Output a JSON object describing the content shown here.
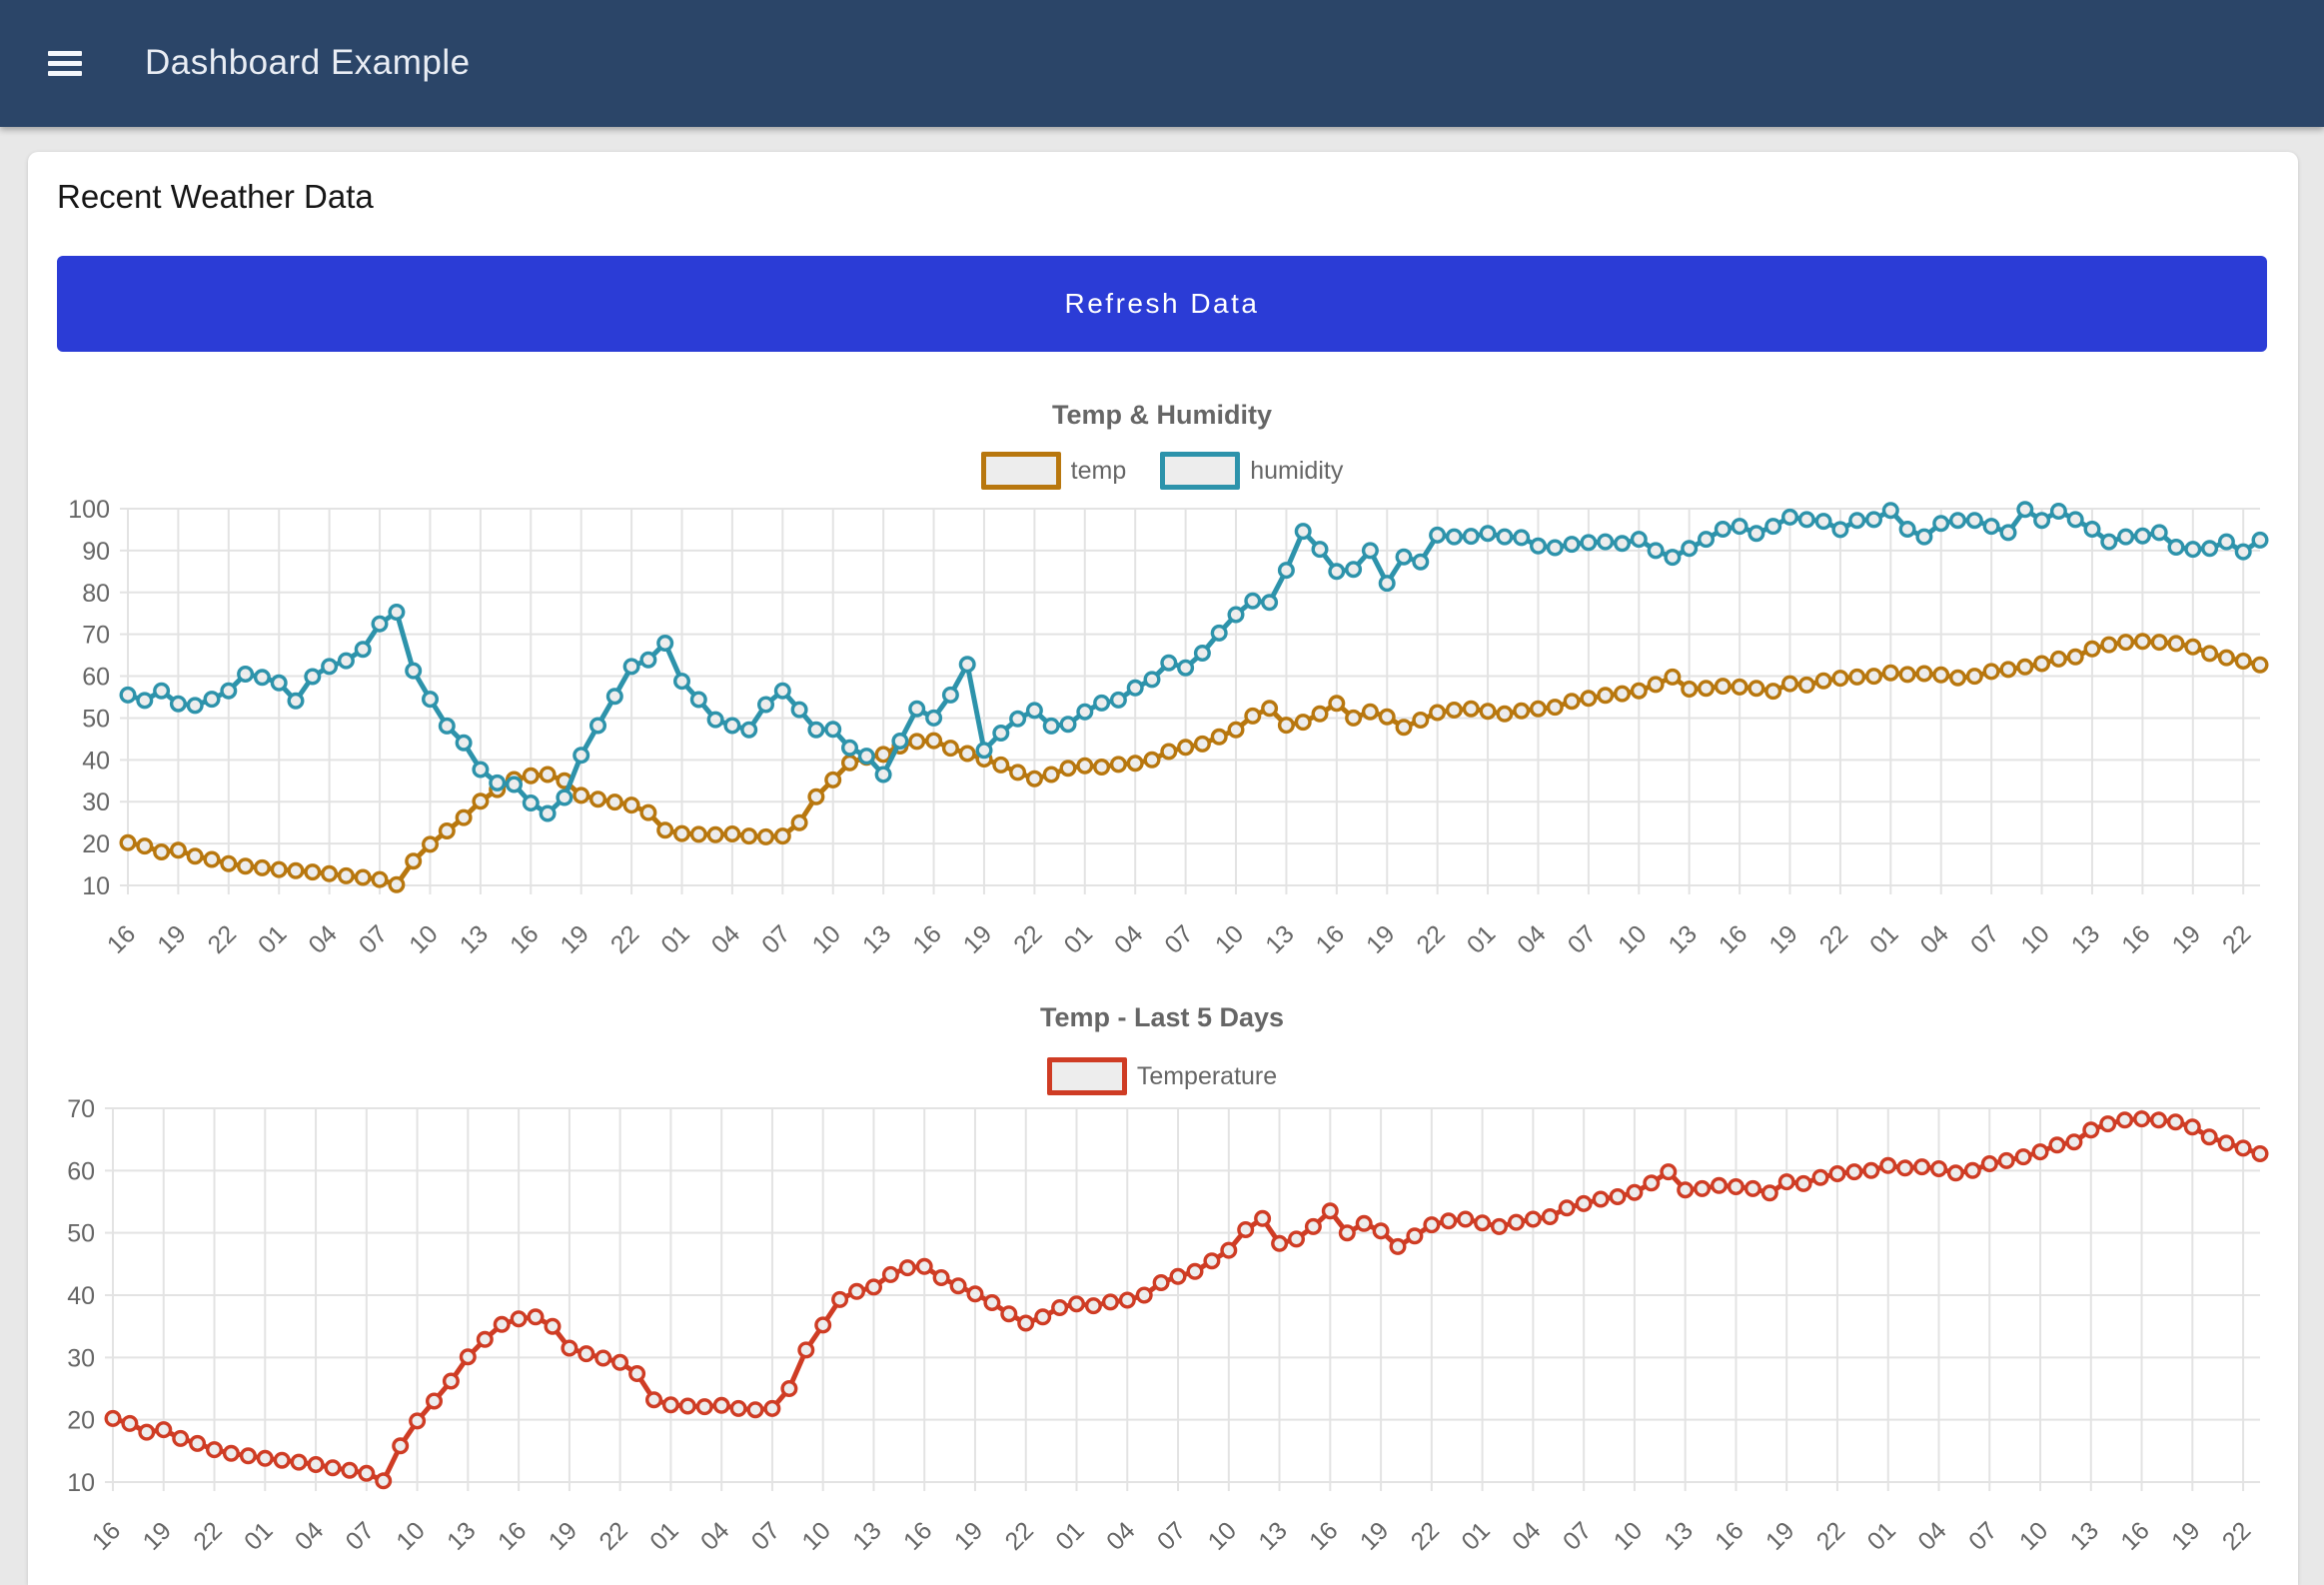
{
  "header": {
    "title": "Dashboard Example",
    "menu_icon": "hamburger-icon"
  },
  "main": {
    "heading": "Recent Weather Data",
    "refresh_button_label": "Refresh Data"
  },
  "colors": {
    "header_bg": "#2b4568",
    "page_bg": "#e8e8e8",
    "card_bg": "#ffffff",
    "button_bg": "#2b3cd6",
    "button_text": "#ffffff",
    "grid": "#e3e3e3",
    "axis_text": "#666666",
    "chart_title_text": "#666666",
    "marker_fill": "#ededed",
    "temp_series": "#b8770e",
    "humidity_series": "#2d93ab",
    "temperature_series": "#cf3c24"
  },
  "chart_data": [
    {
      "type": "line",
      "title": "Temp & Humidity",
      "legend_position": "top",
      "grid": true,
      "ylim": [
        10,
        100
      ],
      "ytick_step": 10,
      "xlabel": "",
      "ylabel": "",
      "x_labels": [
        "16",
        "19",
        "22",
        "01",
        "04",
        "07",
        "10",
        "13",
        "16",
        "19",
        "22",
        "01",
        "04",
        "07",
        "10",
        "13",
        "16",
        "19",
        "22",
        "01",
        "04",
        "07",
        "10",
        "13",
        "16",
        "19",
        "22",
        "01",
        "04",
        "07",
        "10",
        "13",
        "16",
        "19",
        "22",
        "01",
        "04",
        "07",
        "10",
        "13",
        "16",
        "19",
        "22"
      ],
      "x_unit": "hour of day, hourly points over last 5 days, labels every 3 hours",
      "series": [
        {
          "name": "temp",
          "color": "#b8770e",
          "values": [
            20.2,
            19.4,
            18.0,
            18.4,
            17.0,
            16.2,
            15.2,
            14.6,
            14.2,
            13.8,
            13.5,
            13.2,
            12.8,
            12.3,
            11.9,
            11.4,
            10.2,
            15.8,
            19.8,
            23.0,
            26.2,
            30.1,
            32.9,
            35.3,
            36.2,
            36.5,
            35.0,
            31.5,
            30.6,
            29.9,
            29.2,
            27.4,
            23.2,
            22.4,
            22.2,
            22.1,
            22.3,
            21.8,
            21.6,
            21.8,
            25.0,
            31.2,
            35.2,
            39.3,
            40.6,
            41.3,
            43.3,
            44.4,
            44.6,
            42.8,
            41.5,
            40.2,
            38.8,
            37.0,
            35.5,
            36.5,
            38.0,
            38.6,
            38.3,
            38.9,
            39.2,
            40.0,
            42.0,
            43.0,
            43.8,
            45.5,
            47.2,
            50.5,
            52.3,
            48.3,
            49.0,
            51.0,
            53.5,
            50.0,
            51.5,
            50.3,
            47.8,
            49.5,
            51.3,
            51.9,
            52.2,
            51.6,
            51.0,
            51.7,
            52.2,
            52.6,
            54.0,
            54.7,
            55.4,
            55.8,
            56.5,
            58.0,
            59.8,
            56.9,
            57.1,
            57.6,
            57.4,
            57.1,
            56.4,
            58.2,
            57.9,
            58.9,
            59.5,
            59.8,
            60.0,
            60.8,
            60.4,
            60.6,
            60.3,
            59.6,
            60.0,
            61.1,
            61.6,
            62.2,
            63.0,
            64.1,
            64.6,
            66.5,
            67.5,
            68.1,
            68.3,
            68.1,
            67.8,
            67.0,
            65.4,
            64.4,
            63.6,
            62.7
          ]
        },
        {
          "name": "humidity",
          "color": "#2d93ab",
          "values": [
            55.5,
            54.2,
            56.5,
            53.4,
            53.0,
            54.5,
            56.5,
            60.5,
            59.7,
            58.4,
            54.1,
            59.9,
            62.3,
            63.7,
            66.4,
            72.5,
            75.3,
            61.3,
            54.5,
            48.1,
            44.1,
            37.7,
            34.5,
            34.1,
            29.7,
            27.2,
            31.0,
            41.1,
            48.2,
            55.2,
            62.3,
            63.9,
            67.9,
            58.8,
            54.4,
            49.6,
            48.2,
            47.2,
            53.2,
            56.5,
            52.0,
            47.2,
            47.3,
            42.9,
            40.9,
            36.5,
            44.5,
            52.2,
            50.0,
            55.5,
            62.8,
            42.3,
            46.4,
            49.8,
            51.8,
            48.1,
            48.5,
            51.5,
            53.6,
            54.3,
            57.2,
            59.2,
            63.2,
            62.0,
            65.5,
            70.3,
            74.7,
            78.0,
            77.6,
            85.3,
            94.6,
            90.3,
            85.0,
            85.5,
            90.0,
            82.2,
            88.5,
            87.3,
            93.7,
            93.3,
            93.4,
            94.1,
            93.3,
            93.1,
            91.1,
            90.7,
            91.5,
            91.9,
            92.1,
            91.7,
            92.7,
            90.0,
            88.4,
            90.5,
            92.7,
            95.1,
            95.8,
            94.1,
            95.8,
            98.0,
            97.4,
            97.0,
            95.0,
            97.2,
            97.4,
            99.6,
            95.1,
            93.3,
            96.5,
            97.2,
            97.2,
            95.8,
            94.3,
            99.8,
            97.2,
            99.4,
            97.4,
            95.1,
            92.1,
            93.3,
            93.5,
            94.3,
            90.8,
            90.3,
            90.5,
            92.1,
            89.7,
            92.5
          ]
        }
      ]
    },
    {
      "type": "line",
      "title": "Temp - Last 5 Days",
      "legend_position": "top",
      "grid": true,
      "ylim": [
        10,
        70
      ],
      "ytick_step": 10,
      "xlabel": "",
      "ylabel": "",
      "x_labels": [
        "16",
        "19",
        "22",
        "01",
        "04",
        "07",
        "10",
        "13",
        "16",
        "19",
        "22",
        "01",
        "04",
        "07",
        "10",
        "13",
        "16",
        "19",
        "22",
        "01",
        "04",
        "07",
        "10",
        "13",
        "16",
        "19",
        "22",
        "01",
        "04",
        "07",
        "10",
        "13",
        "16",
        "19",
        "22",
        "01",
        "04",
        "07",
        "10",
        "13",
        "16",
        "19",
        "22"
      ],
      "x_unit": "hour of day, hourly points over last 5 days, labels every 3 hours",
      "series": [
        {
          "name": "Temperature",
          "color": "#cf3c24",
          "values": [
            20.2,
            19.4,
            18.0,
            18.4,
            17.0,
            16.2,
            15.2,
            14.6,
            14.2,
            13.8,
            13.5,
            13.2,
            12.8,
            12.3,
            11.9,
            11.4,
            10.2,
            15.8,
            19.8,
            23.0,
            26.2,
            30.1,
            32.9,
            35.3,
            36.2,
            36.5,
            35.0,
            31.5,
            30.6,
            29.9,
            29.2,
            27.4,
            23.2,
            22.4,
            22.2,
            22.1,
            22.3,
            21.8,
            21.6,
            21.8,
            25.0,
            31.2,
            35.2,
            39.3,
            40.6,
            41.3,
            43.3,
            44.4,
            44.6,
            42.8,
            41.5,
            40.2,
            38.8,
            37.0,
            35.5,
            36.5,
            38.0,
            38.6,
            38.3,
            38.9,
            39.2,
            40.0,
            42.0,
            43.0,
            43.8,
            45.5,
            47.2,
            50.5,
            52.3,
            48.3,
            49.0,
            51.0,
            53.5,
            50.0,
            51.5,
            50.3,
            47.8,
            49.5,
            51.3,
            51.9,
            52.2,
            51.6,
            51.0,
            51.7,
            52.2,
            52.6,
            54.0,
            54.7,
            55.4,
            55.8,
            56.5,
            58.0,
            59.8,
            56.9,
            57.1,
            57.6,
            57.4,
            57.1,
            56.4,
            58.2,
            57.9,
            58.9,
            59.5,
            59.8,
            60.0,
            60.8,
            60.4,
            60.6,
            60.3,
            59.6,
            60.0,
            61.1,
            61.6,
            62.2,
            63.0,
            64.1,
            64.6,
            66.5,
            67.5,
            68.1,
            68.3,
            68.1,
            67.8,
            67.0,
            65.4,
            64.4,
            63.6,
            62.7
          ]
        }
      ]
    }
  ]
}
